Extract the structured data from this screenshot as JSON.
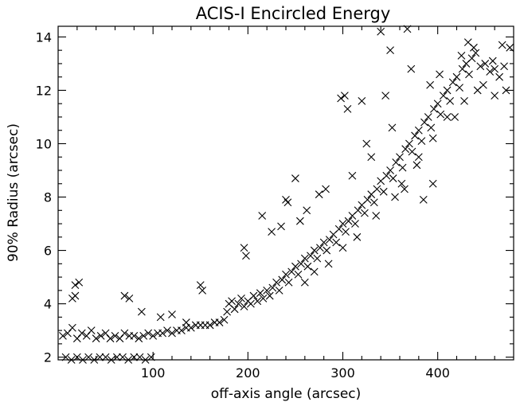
{
  "chart_data": {
    "type": "scatter",
    "title": "ACIS-I Encircled Energy",
    "xlabel": "off-axis angle (arcsec)",
    "ylabel": "90% Radius (arcsec)",
    "xlim": [
      0,
      480
    ],
    "ylim": [
      1.9,
      14.4
    ],
    "xticks": [
      100,
      200,
      300,
      400
    ],
    "yticks": [
      2,
      4,
      6,
      8,
      10,
      12,
      14
    ],
    "grid": false,
    "marker": "x",
    "series": [
      {
        "points": [
          [
            5,
            2.8
          ],
          [
            10,
            2.9
          ],
          [
            15,
            3.1
          ],
          [
            20,
            2.7
          ],
          [
            25,
            2.9
          ],
          [
            30,
            2.8
          ],
          [
            35,
            3.0
          ],
          [
            40,
            2.7
          ],
          [
            45,
            2.8
          ],
          [
            50,
            2.9
          ],
          [
            55,
            2.7
          ],
          [
            60,
            2.8
          ],
          [
            65,
            2.7
          ],
          [
            70,
            2.9
          ],
          [
            75,
            2.8
          ],
          [
            80,
            2.8
          ],
          [
            85,
            2.7
          ],
          [
            90,
            2.8
          ],
          [
            95,
            2.9
          ],
          [
            100,
            2.8
          ],
          [
            105,
            2.9
          ],
          [
            110,
            2.9
          ],
          [
            115,
            3.0
          ],
          [
            120,
            2.9
          ],
          [
            125,
            3.0
          ],
          [
            130,
            3.0
          ],
          [
            135,
            3.1
          ],
          [
            140,
            3.1
          ],
          [
            145,
            3.2
          ],
          [
            150,
            3.2
          ],
          [
            155,
            3.2
          ],
          [
            160,
            3.2
          ],
          [
            165,
            3.3
          ],
          [
            170,
            3.3
          ],
          [
            175,
            3.4
          ],
          [
            8,
            2.0
          ],
          [
            14,
            1.9
          ],
          [
            20,
            2.0
          ],
          [
            26,
            1.9
          ],
          [
            32,
            2.0
          ],
          [
            38,
            1.9
          ],
          [
            44,
            2.0
          ],
          [
            50,
            2.0
          ],
          [
            56,
            1.9
          ],
          [
            62,
            2.0
          ],
          [
            68,
            2.0
          ],
          [
            74,
            1.9
          ],
          [
            80,
            2.0
          ],
          [
            86,
            2.0
          ],
          [
            92,
            1.9
          ],
          [
            98,
            2.0
          ],
          [
            18,
            4.7
          ],
          [
            18,
            4.3
          ],
          [
            22,
            4.8
          ],
          [
            15,
            4.2
          ],
          [
            70,
            4.3
          ],
          [
            75,
            4.2
          ],
          [
            88,
            3.7
          ],
          [
            108,
            3.5
          ],
          [
            150,
            4.7
          ],
          [
            152,
            4.5
          ],
          [
            120,
            3.6
          ],
          [
            135,
            3.3
          ],
          [
            178,
            3.7
          ],
          [
            180,
            4.0
          ],
          [
            183,
            4.1
          ],
          [
            186,
            3.8
          ],
          [
            190,
            4.0
          ],
          [
            193,
            4.2
          ],
          [
            196,
            3.9
          ],
          [
            200,
            4.1
          ],
          [
            203,
            4.0
          ],
          [
            206,
            4.3
          ],
          [
            210,
            4.1
          ],
          [
            213,
            4.4
          ],
          [
            216,
            4.2
          ],
          [
            220,
            4.5
          ],
          [
            223,
            4.3
          ],
          [
            226,
            4.6
          ],
          [
            230,
            4.8
          ],
          [
            233,
            4.5
          ],
          [
            236,
            4.9
          ],
          [
            240,
            5.1
          ],
          [
            243,
            4.8
          ],
          [
            246,
            5.2
          ],
          [
            250,
            5.4
          ],
          [
            253,
            5.1
          ],
          [
            256,
            5.5
          ],
          [
            260,
            5.7
          ],
          [
            263,
            5.4
          ],
          [
            266,
            5.8
          ],
          [
            270,
            6.0
          ],
          [
            273,
            5.7
          ],
          [
            276,
            6.1
          ],
          [
            280,
            6.3
          ],
          [
            283,
            6.0
          ],
          [
            286,
            6.4
          ],
          [
            290,
            6.6
          ],
          [
            293,
            6.3
          ],
          [
            296,
            6.8
          ],
          [
            300,
            7.0
          ],
          [
            303,
            6.7
          ],
          [
            306,
            7.1
          ],
          [
            310,
            7.3
          ],
          [
            313,
            7.0
          ],
          [
            316,
            7.5
          ],
          [
            320,
            7.7
          ],
          [
            323,
            7.4
          ],
          [
            326,
            7.9
          ],
          [
            330,
            8.1
          ],
          [
            333,
            7.8
          ],
          [
            336,
            8.3
          ],
          [
            340,
            8.6
          ],
          [
            343,
            8.2
          ],
          [
            346,
            8.8
          ],
          [
            350,
            9.0
          ],
          [
            353,
            8.7
          ],
          [
            356,
            9.3
          ],
          [
            360,
            9.5
          ],
          [
            363,
            9.1
          ],
          [
            366,
            9.8
          ],
          [
            370,
            10.0
          ],
          [
            373,
            9.7
          ],
          [
            376,
            10.3
          ],
          [
            380,
            10.5
          ],
          [
            383,
            10.1
          ],
          [
            386,
            10.8
          ],
          [
            390,
            11.0
          ],
          [
            393,
            10.6
          ],
          [
            396,
            11.3
          ],
          [
            400,
            11.5
          ],
          [
            403,
            11.1
          ],
          [
            406,
            11.8
          ],
          [
            410,
            12.0
          ],
          [
            413,
            11.6
          ],
          [
            416,
            12.3
          ],
          [
            420,
            12.5
          ],
          [
            423,
            12.1
          ],
          [
            426,
            12.8
          ],
          [
            430,
            13.0
          ],
          [
            433,
            12.6
          ],
          [
            436,
            13.2
          ],
          [
            440,
            13.4
          ],
          [
            445,
            12.9
          ],
          [
            450,
            13.0
          ],
          [
            455,
            12.7
          ],
          [
            460,
            12.8
          ],
          [
            465,
            12.5
          ],
          [
            470,
            12.9
          ],
          [
            196,
            6.1
          ],
          [
            198,
            5.8
          ],
          [
            215,
            7.3
          ],
          [
            240,
            7.9
          ],
          [
            242,
            7.8
          ],
          [
            250,
            8.7
          ],
          [
            262,
            7.5
          ],
          [
            275,
            8.1
          ],
          [
            225,
            6.7
          ],
          [
            235,
            6.9
          ],
          [
            255,
            7.1
          ],
          [
            298,
            11.7
          ],
          [
            302,
            11.8
          ],
          [
            305,
            11.3
          ],
          [
            320,
            11.6
          ],
          [
            325,
            10.0
          ],
          [
            340,
            14.2
          ],
          [
            345,
            11.8
          ],
          [
            350,
            13.5
          ],
          [
            368,
            14.3
          ],
          [
            372,
            12.8
          ],
          [
            385,
            7.9
          ],
          [
            395,
            8.5
          ],
          [
            282,
            8.3
          ],
          [
            310,
            8.8
          ],
          [
            330,
            9.5
          ],
          [
            352,
            10.6
          ],
          [
            362,
            8.5
          ],
          [
            378,
            9.2
          ],
          [
            392,
            12.2
          ],
          [
            402,
            12.6
          ],
          [
            418,
            11.0
          ],
          [
            425,
            13.3
          ],
          [
            432,
            13.8
          ],
          [
            438,
            13.6
          ],
          [
            448,
            12.2
          ],
          [
            458,
            13.1
          ],
          [
            468,
            13.7
          ],
          [
            472,
            12.0
          ],
          [
            476,
            13.6
          ],
          [
            260,
            4.8
          ],
          [
            270,
            5.2
          ],
          [
            285,
            5.5
          ],
          [
            300,
            6.1
          ],
          [
            315,
            6.5
          ],
          [
            335,
            7.3
          ],
          [
            355,
            8.0
          ],
          [
            365,
            8.3
          ],
          [
            380,
            9.5
          ],
          [
            395,
            10.2
          ],
          [
            410,
            11.0
          ],
          [
            428,
            11.6
          ],
          [
            442,
            12.0
          ],
          [
            460,
            11.8
          ]
        ]
      }
    ]
  }
}
